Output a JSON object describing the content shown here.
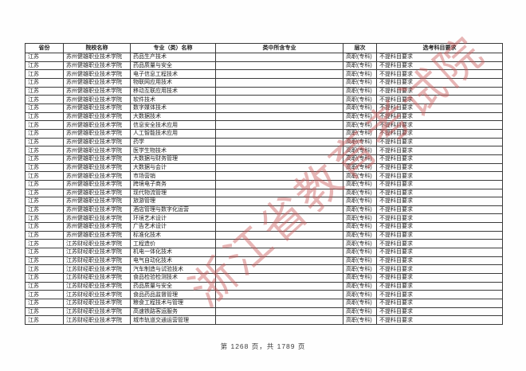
{
  "watermark_text": "浙江省教育考试院",
  "footer": {
    "text": "第 1268 页，共 1789 页",
    "current_page": "1268",
    "total_pages": "1789"
  },
  "table": {
    "headers": [
      "省份",
      "院校名称",
      "专业（类）名称",
      "类中所含专业",
      "层次",
      "选考科目要求"
    ],
    "rows": [
      [
        "江苏",
        "苏州健雄职业技术学院",
        "药品生产技术",
        "",
        "高职(专科)",
        "不提科目要求"
      ],
      [
        "江苏",
        "苏州健雄职业技术学院",
        "药品质量与安全",
        "",
        "高职(专科)",
        "不提科目要求"
      ],
      [
        "江苏",
        "苏州健雄职业技术学院",
        "电子信息工程技术",
        "",
        "高职(专科)",
        "不提科目要求"
      ],
      [
        "江苏",
        "苏州健雄职业技术学院",
        "物联网应用技术",
        "",
        "高职(专科)",
        "不提科目要求"
      ],
      [
        "江苏",
        "苏州健雄职业技术学院",
        "移动互联应用技术",
        "",
        "高职(专科)",
        "不提科目要求"
      ],
      [
        "江苏",
        "苏州健雄职业技术学院",
        "软件技术",
        "",
        "高职(专科)",
        "不提科目要求"
      ],
      [
        "江苏",
        "苏州健雄职业技术学院",
        "数字媒体技术",
        "",
        "高职(专科)",
        "不提科目要求"
      ],
      [
        "江苏",
        "苏州健雄职业技术学院",
        "大数据技术",
        "",
        "高职(专科)",
        "不提科目要求"
      ],
      [
        "江苏",
        "苏州健雄职业技术学院",
        "信息安全技术应用",
        "",
        "高职(专科)",
        "不提科目要求"
      ],
      [
        "江苏",
        "苏州健雄职业技术学院",
        "人工智能技术应用",
        "",
        "高职(专科)",
        "不提科目要求"
      ],
      [
        "江苏",
        "苏州健雄职业技术学院",
        "药学",
        "",
        "高职(专科)",
        "不提科目要求"
      ],
      [
        "江苏",
        "苏州健雄职业技术学院",
        "医学生物技术",
        "",
        "高职(专科)",
        "不提科目要求"
      ],
      [
        "江苏",
        "苏州健雄职业技术学院",
        "大数据与财务管理",
        "",
        "高职(专科)",
        "不提科目要求"
      ],
      [
        "江苏",
        "苏州健雄职业技术学院",
        "大数据与会计",
        "",
        "高职(专科)",
        "不提科目要求"
      ],
      [
        "江苏",
        "苏州健雄职业技术学院",
        "市场营销",
        "",
        "高职(专科)",
        "不提科目要求"
      ],
      [
        "江苏",
        "苏州健雄职业技术学院",
        "跨境电子商务",
        "",
        "高职(专科)",
        "不提科目要求"
      ],
      [
        "江苏",
        "苏州健雄职业技术学院",
        "现代物流管理",
        "",
        "高职(专科)",
        "不提科目要求"
      ],
      [
        "江苏",
        "苏州健雄职业技术学院",
        "旅游管理",
        "",
        "高职(专科)",
        "不提科目要求"
      ],
      [
        "江苏",
        "苏州健雄职业技术学院",
        "酒店管理与数字化运营",
        "",
        "高职(专科)",
        "不提科目要求"
      ],
      [
        "江苏",
        "苏州健雄职业技术学院",
        "环境艺术设计",
        "",
        "高职(专科)",
        "不提科目要求"
      ],
      [
        "江苏",
        "苏州健雄职业技术学院",
        "广告艺术设计",
        "",
        "高职(专科)",
        "不提科目要求"
      ],
      [
        "江苏",
        "苏州健雄职业技术学院",
        "标准化技术",
        "",
        "高职(专科)",
        "不提科目要求"
      ],
      [
        "江苏",
        "江苏财经职业技术学院",
        "工程造价",
        "",
        "高职(专科)",
        "不提科目要求"
      ],
      [
        "江苏",
        "江苏财经职业技术学院",
        "机电一体化技术",
        "",
        "高职(专科)",
        "不提科目要求"
      ],
      [
        "江苏",
        "江苏财经职业技术学院",
        "电气自动化技术",
        "",
        "高职(专科)",
        "不提科目要求"
      ],
      [
        "江苏",
        "江苏财经职业技术学院",
        "汽车制造与试验技术",
        "",
        "高职(专科)",
        "不提科目要求"
      ],
      [
        "江苏",
        "江苏财经职业技术学院",
        "食品检验检测技术",
        "",
        "高职(专科)",
        "不提科目要求"
      ],
      [
        "江苏",
        "江苏财经职业技术学院",
        "药品质量与安全",
        "",
        "高职(专科)",
        "不提科目要求"
      ],
      [
        "江苏",
        "江苏财经职业技术学院",
        "食品药品监督管理",
        "",
        "高职(专科)",
        "不提科目要求"
      ],
      [
        "江苏",
        "江苏财经职业技术学院",
        "粮食工程技术与管理",
        "",
        "高职(专科)",
        "不提科目要求"
      ],
      [
        "江苏",
        "江苏财经职业技术学院",
        "高速铁路客运服务",
        "",
        "高职(专科)",
        "不提科目要求"
      ],
      [
        "江苏",
        "江苏财经职业技术学院",
        "城市轨道交通运营管理",
        "",
        "高职(专科)",
        "不提科目要求"
      ]
    ],
    "column_keys": [
      "province",
      "college",
      "major",
      "included-majors",
      "level",
      "subject-requirement"
    ]
  },
  "accent_colors": {
    "watermark_red": "#c95252",
    "border_gray": "#3a3a3a"
  }
}
